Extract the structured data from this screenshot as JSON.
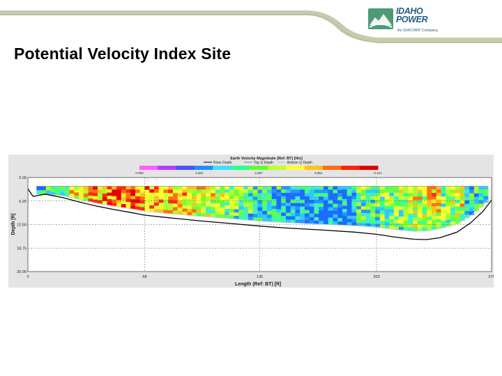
{
  "slide": {
    "title": "Potential Velocity Index Site",
    "logo": {
      "line1": "IDAHO",
      "line2": "POWER",
      "tagline": "An IDACORP Company",
      "colors": {
        "brand_blue": "#1f5e86",
        "brand_green": "#4f9a76"
      }
    },
    "decor_colors": {
      "band": "#c9c9b0",
      "line": "#b9b594"
    }
  },
  "chart_data": {
    "type": "heatmap",
    "title": "Earth Velocity Magnitude (Ref: BT) [ft/s]",
    "legend_entries": [
      "River Depth",
      "Top Q Depth",
      "Bottom Q Depth"
    ],
    "colorbar": {
      "ticks": [
        "0.053",
        "1.320",
        "2.587",
        "3.854",
        "5.121"
      ],
      "colors": [
        "#ff60ff",
        "#b040ff",
        "#5050ff",
        "#2090ff",
        "#40e0ff",
        "#30ff90",
        "#60ff30",
        "#c0ff30",
        "#ffff30",
        "#ffc020",
        "#ff7010",
        "#ff2010",
        "#e00000"
      ]
    },
    "xlabel": "Length (Ref: BT) [ft]",
    "ylabel": "Depth [ft]",
    "x_ticks": [
      "0",
      "68",
      "135",
      "203",
      "270"
    ],
    "y_ticks": [
      "0.00",
      "6.25",
      "12.50",
      "18.75",
      "25.00"
    ],
    "xlim": [
      0,
      270
    ],
    "ylim": [
      0,
      25
    ],
    "y_inverted": true,
    "grid": true,
    "river_depth_profile": {
      "x": [
        0,
        3,
        10,
        20,
        30,
        40,
        50,
        60,
        68,
        80,
        100,
        120,
        135,
        150,
        170,
        190,
        203,
        215,
        225,
        232,
        240,
        250,
        258,
        265,
        270
      ],
      "depth": [
        3,
        5,
        4.4,
        5.3,
        6.5,
        7.6,
        8.5,
        9.3,
        10,
        10.6,
        11.5,
        12.3,
        12.9,
        13.4,
        13.9,
        14.5,
        15.1,
        15.9,
        16.4,
        16.5,
        16.0,
        14.5,
        12.0,
        9.0,
        6.0
      ]
    },
    "bottom_q_depth_profile": {
      "x": [
        8,
        20,
        30,
        40,
        50,
        60,
        68,
        80,
        100,
        120,
        135,
        150,
        170,
        190,
        203,
        215,
        225,
        232,
        240,
        250,
        258,
        265,
        270
      ],
      "depth": [
        4.4,
        4.8,
        5.8,
        6.8,
        7.6,
        8.3,
        8.9,
        9.5,
        10.3,
        11.0,
        11.6,
        12.0,
        12.4,
        12.8,
        13.2,
        13.9,
        14.3,
        14.2,
        13.6,
        12.3,
        10.1,
        7.5,
        5.0
      ]
    },
    "top_q_depth": 2.3,
    "measured_x_range": [
      5,
      268
    ],
    "grid_cells": {
      "columns": 96,
      "rows": 22
    }
  }
}
